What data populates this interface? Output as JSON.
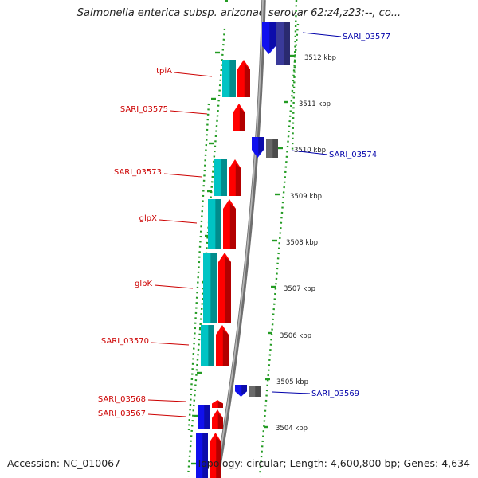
{
  "title": "Salmonella enterica subsp. arizonae serovar 62:z4,z23:--, co...",
  "accession": "Accession: NC_010067",
  "genome_info": "Topology: circular; Length: 4,600,800 bp; Genes: 4,634",
  "colors": {
    "forward_cds": "#ff0000",
    "forward_blast": "#00c4c4",
    "reverse_cds": "#1010ee",
    "reverse_other": "#6a6a6a",
    "backbone": "#8a8a8a",
    "ruler_dots": "#239b23",
    "label_forward": "#cc0000",
    "label_reverse": "#0000aa"
  },
  "scale": {
    "unit": "kbp",
    "ticks": [
      {
        "kbp": 3512,
        "label": "3512 kbp"
      },
      {
        "kbp": 3511,
        "label": "3511 kbp"
      },
      {
        "kbp": 3510,
        "label": "3510 kbp"
      },
      {
        "kbp": 3509,
        "label": "3509 kbp"
      },
      {
        "kbp": 3508,
        "label": "3508 kbp"
      },
      {
        "kbp": 3507,
        "label": "3507 kbp"
      },
      {
        "kbp": 3506,
        "label": "3506 kbp"
      },
      {
        "kbp": 3505,
        "label": "3505 kbp"
      },
      {
        "kbp": 3504,
        "label": "3504 kbp"
      }
    ]
  },
  "features": [
    {
      "name": "SARI_03577",
      "strand": "reverse",
      "labeled": true
    },
    {
      "name": "tpiA",
      "strand": "forward",
      "labeled": true
    },
    {
      "name": "SARI_03575",
      "strand": "forward",
      "labeled": true
    },
    {
      "name": "SARI_03574",
      "strand": "reverse",
      "labeled": true
    },
    {
      "name": "SARI_03573",
      "strand": "forward",
      "labeled": true
    },
    {
      "name": "glpX",
      "strand": "forward",
      "labeled": true
    },
    {
      "name": "glpK",
      "strand": "forward",
      "labeled": true
    },
    {
      "name": "SARI_03570",
      "strand": "forward",
      "labeled": true
    },
    {
      "name": "SARI_03569",
      "strand": "reverse",
      "labeled": true
    },
    {
      "name": "SARI_03568",
      "strand": "forward",
      "labeled": true
    },
    {
      "name": "SARI_03567",
      "strand": "forward",
      "labeled": true
    },
    {
      "name": "",
      "strand": "forward",
      "labeled": false
    },
    {
      "name": "",
      "strand": "reverse",
      "labeled": false
    }
  ]
}
